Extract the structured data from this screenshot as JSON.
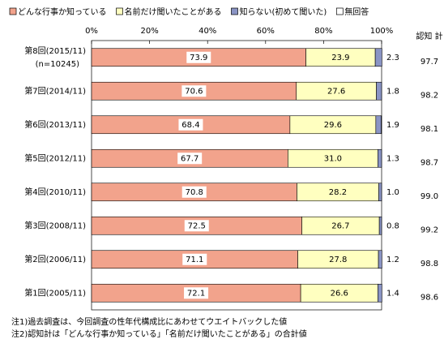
{
  "chart_data": {
    "type": "stacked-barh",
    "categories": [
      "第8回(2015/11)",
      "第7回(2014/11)",
      "第6回(2013/11)",
      "第5回(2012/11)",
      "第4回(2010/11)",
      "第3回(2008/11)",
      "第2回(2006/11)",
      "第1回(2005/11)"
    ],
    "sample_note": "(n=10245)",
    "series": [
      {
        "name": "どんな行事か知っている",
        "color": "#f2a38c",
        "values": [
          73.9,
          70.6,
          68.4,
          67.7,
          70.8,
          72.5,
          71.1,
          72.1
        ],
        "value_labels": [
          "73.9",
          "70.6",
          "68.4",
          "67.7",
          "70.8",
          "72.5",
          "71.1",
          "72.1"
        ]
      },
      {
        "name": "名前だけ聞いたことがある",
        "color": "#ffffc0",
        "values": [
          23.9,
          27.6,
          29.6,
          31.0,
          28.2,
          26.7,
          27.8,
          26.6
        ],
        "value_labels": [
          "23.9",
          "27.6",
          "29.6",
          "31.0",
          "28.2",
          "26.7",
          "27.8",
          "26.6"
        ]
      },
      {
        "name": "知らない(初めて聞いた)",
        "color": "#8a94c4",
        "values": [
          2.3,
          1.8,
          1.9,
          1.3,
          1.0,
          0.8,
          1.2,
          1.4
        ],
        "value_labels": [
          "2.3",
          "1.8",
          "1.9",
          "1.3",
          "1.0",
          "0.8",
          "1.2",
          "1.4"
        ]
      },
      {
        "name": "無回答",
        "color": "#ffffff",
        "values": [
          0,
          0,
          0.1,
          0,
          0,
          0,
          0,
          0
        ]
      }
    ],
    "xlim": [
      0,
      100
    ],
    "xticks": [
      {
        "value": 0,
        "label": "0%"
      },
      {
        "value": 20,
        "label": "20%"
      },
      {
        "value": 40,
        "label": "40%"
      },
      {
        "value": 60,
        "label": "60%"
      },
      {
        "value": 80,
        "label": "80%"
      },
      {
        "value": 100,
        "label": "100%"
      }
    ],
    "totals_header": "認知 計",
    "totals": {
      "values": [
        97.7,
        98.2,
        98.1,
        98.7,
        99.0,
        99.2,
        98.8,
        98.6
      ],
      "value_labels": [
        "97.7",
        "98.2",
        "98.1",
        "98.7",
        "99.0",
        "99.2",
        "98.8",
        "98.6"
      ]
    },
    "notes": [
      "注1)過去調査は、今回調査の性年代構成比にあわせてウエイトバックした値",
      "注2)認知計は「どんな行事か知っている」「名前だけ聞いたことがある」の合計値"
    ]
  }
}
